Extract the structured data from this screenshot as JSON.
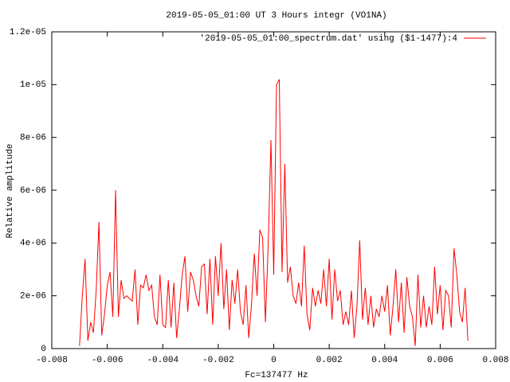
{
  "chart_data": {
    "type": "line",
    "title": "2019-05-05_01:00 UT 3 Hours integr (VO1NA)",
    "xlabel": "Fc=137477 Hz",
    "ylabel": "Relative amplitude",
    "legend": "top-right",
    "xlim": [
      -0.008,
      0.008
    ],
    "xticks": [
      -0.008,
      -0.006,
      -0.004,
      -0.002,
      0,
      0.002,
      0.004,
      0.006,
      0.008
    ],
    "ylim": [
      0,
      1.2e-05
    ],
    "yticks": [
      0,
      {
        "value": 2e-06,
        "label": "2e-06"
      },
      {
        "value": 4e-06,
        "label": "4e-06"
      },
      {
        "value": 6e-06,
        "label": "6e-06"
      },
      {
        "value": 8e-06,
        "label": "8e-06"
      },
      {
        "value": 1e-05,
        "label": "1e-05"
      },
      {
        "value": 1.2e-05,
        "label": "1.2e-05"
      }
    ],
    "x": [
      -0.007,
      -0.0069,
      -0.0068,
      -0.0067,
      -0.0066,
      -0.0065,
      -0.0064,
      -0.0063,
      -0.0062,
      -0.0061,
      -0.006,
      -0.0059,
      -0.0058,
      -0.0057,
      -0.0056,
      -0.0055,
      -0.0054,
      -0.0053,
      -0.0052,
      -0.0051,
      -0.005,
      -0.0049,
      -0.0048,
      -0.0047,
      -0.0046,
      -0.0045,
      -0.0044,
      -0.0043,
      -0.0042,
      -0.0041,
      -0.004,
      -0.0039,
      -0.0038,
      -0.0037,
      -0.0036,
      -0.0035,
      -0.0034,
      -0.0033,
      -0.0032,
      -0.0031,
      -0.003,
      -0.0029,
      -0.0028,
      -0.0027,
      -0.0026,
      -0.0025,
      -0.0024,
      -0.0023,
      -0.0022,
      -0.0021,
      -0.002,
      -0.0019,
      -0.0018,
      -0.0017,
      -0.0016,
      -0.0015,
      -0.0014,
      -0.0013,
      -0.0012,
      -0.0011,
      -0.001,
      -0.0009,
      -0.0008,
      -0.0007,
      -0.0006,
      -0.0005,
      -0.0004,
      -0.0003,
      -0.0002,
      -0.0001,
      0,
      0.0001,
      0.0002,
      0.0003,
      0.0004,
      0.0005,
      0.0006,
      0.0007,
      0.0008,
      0.0009,
      0.001,
      0.0011,
      0.0012,
      0.0013,
      0.0014,
      0.0015,
      0.0016,
      0.0017,
      0.0018,
      0.0019,
      0.002,
      0.0021,
      0.0022,
      0.0023,
      0.0024,
      0.0025,
      0.0026,
      0.0027,
      0.0028,
      0.0029,
      0.003,
      0.0031,
      0.0032,
      0.0033,
      0.0034,
      0.0035,
      0.0036,
      0.0037,
      0.0038,
      0.0039,
      0.004,
      0.0041,
      0.0042,
      0.0043,
      0.0044,
      0.0045,
      0.0046,
      0.0047,
      0.0048,
      0.0049,
      0.005,
      0.0051,
      0.0052,
      0.0053,
      0.0054,
      0.0055,
      0.0056,
      0.0057,
      0.0058,
      0.0059,
      0.006,
      0.0061,
      0.0062,
      0.0063,
      0.0064,
      0.0065,
      0.0066,
      0.0067,
      0.0068,
      0.0069,
      0.007
    ],
    "series": [
      {
        "name": "'2019-05-05_01:00_spectrum.dat' using ($1-1477):4",
        "color": "#ff0000",
        "values": [
          1e-07,
          2e-06,
          3.4e-06,
          3e-07,
          1e-06,
          6e-07,
          2.2e-06,
          4.8e-06,
          5e-07,
          1.3e-06,
          2.4e-06,
          2.9e-06,
          1.2e-06,
          6e-06,
          1.2e-06,
          2.6e-06,
          1.9e-06,
          2e-06,
          1.9e-06,
          1.8e-06,
          3e-06,
          9e-07,
          2.4e-06,
          2.3e-06,
          2.8e-06,
          2.2e-06,
          2.4e-06,
          1.2e-06,
          9e-07,
          2.8e-06,
          9e-07,
          8e-07,
          2.6e-06,
          8e-07,
          2.5e-06,
          4e-07,
          1.5e-06,
          2.8e-06,
          3.5e-06,
          1.4e-06,
          2.9e-06,
          2.6e-06,
          2e-06,
          1.6e-06,
          3.1e-06,
          3.2e-06,
          1.3e-06,
          3.4e-06,
          9e-07,
          3.5e-06,
          2e-06,
          4e-06,
          1.5e-06,
          3e-06,
          7e-07,
          2.6e-06,
          1.7e-06,
          3e-06,
          1.4e-06,
          9e-07,
          2.4e-06,
          4e-07,
          1.7e-06,
          3.6e-06,
          2e-06,
          4.5e-06,
          4.2e-06,
          1e-06,
          3.9e-06,
          7.9e-06,
          2.8e-06,
          1e-05,
          1.02e-05,
          2.9e-06,
          7e-06,
          2.5e-06,
          3.1e-06,
          2e-06,
          1.7e-06,
          2.5e-06,
          1.6e-06,
          3.9e-06,
          1.3e-06,
          7e-07,
          2.3e-06,
          1.6e-06,
          2.2e-06,
          1.7e-06,
          3e-06,
          1.6e-06,
          3.4e-06,
          1.1e-06,
          3e-06,
          1.8e-06,
          2.2e-06,
          9e-07,
          1.4e-06,
          9e-07,
          2.2e-06,
          4e-07,
          1.6e-06,
          4.1e-06,
          1.1e-06,
          2.3e-06,
          9e-07,
          2e-06,
          8e-07,
          1.5e-06,
          1.2e-06,
          2e-06,
          1.4e-06,
          2.4e-06,
          5e-07,
          1.6e-06,
          3e-06,
          1e-06,
          2.5e-06,
          6e-07,
          2.7e-06,
          1.6e-06,
          1.2e-06,
          1e-07,
          2.8e-06,
          8e-07,
          2e-06,
          8e-07,
          1.6e-06,
          9e-07,
          3.1e-06,
          1.3e-06,
          2.4e-06,
          7e-07,
          2.2e-06,
          2e-06,
          8e-07,
          3.8e-06,
          2.8e-06,
          1.4e-06,
          1e-06,
          2.3e-06,
          3e-07
        ]
      }
    ]
  }
}
